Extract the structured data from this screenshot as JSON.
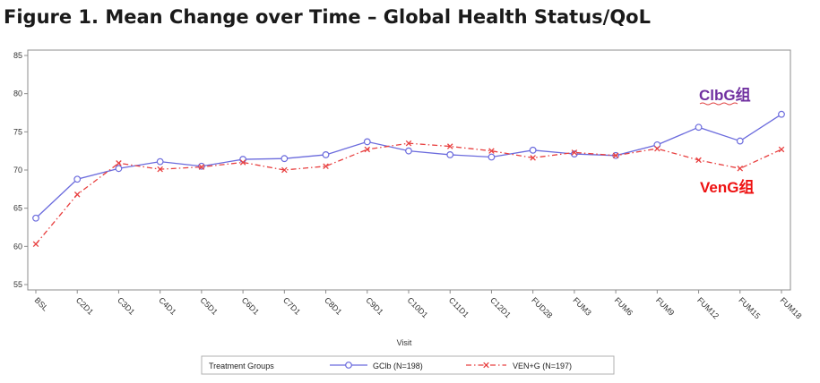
{
  "chart_data": {
    "type": "line",
    "title": "Figure 1. Mean Change over Time – Global Health Status/QoL",
    "xlabel": "Visit",
    "ylabel": "",
    "ylim": [
      55,
      85
    ],
    "yticks": [
      55,
      60,
      65,
      70,
      75,
      80,
      85
    ],
    "categories": [
      "BSL",
      "C2D1",
      "C3D1",
      "C4D1",
      "C5D1",
      "C6D1",
      "C7D1",
      "C8D1",
      "C9D1",
      "C10D1",
      "C11D1",
      "C12D1",
      "FUD28",
      "FUM3",
      "FUM6",
      "FUM9",
      "FUM12",
      "FUM15",
      "FUM18"
    ],
    "series": [
      {
        "name": "GClb (N=198)",
        "color": "#6b6bdd",
        "marker": "circle",
        "line_style": "solid",
        "values": [
          63.7,
          68.8,
          70.2,
          71.1,
          70.5,
          71.4,
          71.5,
          72.0,
          73.7,
          72.5,
          72.0,
          71.7,
          72.6,
          72.1,
          71.9,
          73.3,
          75.6,
          73.8,
          77.3
        ]
      },
      {
        "name": "VEN+G (N=197)",
        "color": "#e84040",
        "marker": "x",
        "line_style": "dash-dot",
        "values": [
          60.3,
          66.8,
          70.9,
          70.1,
          70.4,
          71.0,
          70.0,
          70.5,
          72.7,
          73.5,
          73.1,
          72.5,
          71.6,
          72.3,
          71.9,
          72.8,
          71.3,
          70.2,
          72.7
        ]
      }
    ],
    "legend": {
      "title": "Treatment Groups",
      "placement": "bottom-center"
    },
    "annotations": [
      {
        "text": "ClbG组",
        "color": "#7030a0"
      },
      {
        "text": "VenG组",
        "color": "#ee1111"
      }
    ],
    "grid": false
  }
}
